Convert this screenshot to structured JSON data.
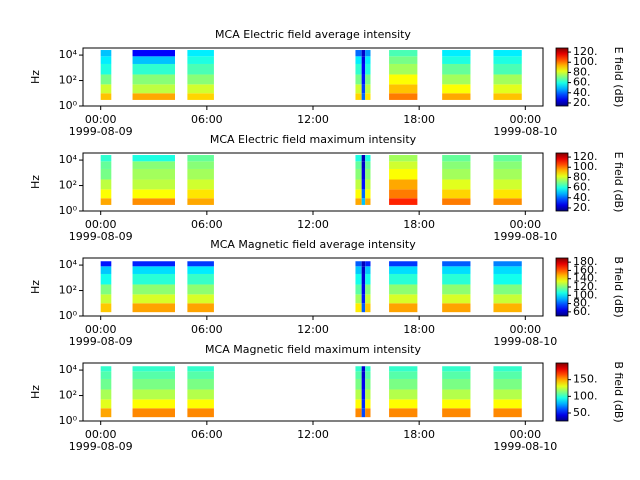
{
  "chart_data": [
    {
      "type": "spectrogram",
      "title": "MCA  Electric field average intensity",
      "ylabel": "Hz",
      "colorbar_label": "E field (dB)",
      "colormap": "jet",
      "log_y": true,
      "xlim": [
        -1,
        25
      ],
      "xticks": [
        {
          "value": 0,
          "label": "00:00"
        },
        {
          "value": 6,
          "label": "06:00"
        },
        {
          "value": 12,
          "label": "12:00"
        },
        {
          "value": 18,
          "label": "18:00"
        },
        {
          "value": 24,
          "label": "00:00"
        }
      ],
      "date_labels": [
        {
          "value": 0,
          "label": "1999-08-09"
        },
        {
          "value": 24,
          "label": "1999-08-10"
        }
      ],
      "ylim": [
        1,
        36000
      ],
      "yticks": [
        {
          "value": 1,
          "label": "10⁰"
        },
        {
          "value": 100,
          "label": "10²"
        },
        {
          "value": 10000,
          "label": "10⁴"
        }
      ],
      "clim": [
        14,
        128
      ],
      "cticks": [
        {
          "value": 20,
          "label": "20."
        },
        {
          "value": 40,
          "label": "40."
        },
        {
          "value": 60,
          "label": "60."
        },
        {
          "value": 80,
          "label": "80."
        },
        {
          "value": 100,
          "label": "100."
        },
        {
          "value": 120,
          "label": "120."
        }
      ],
      "freq_edges": [
        3,
        10,
        50,
        300,
        2000,
        8000,
        25000
      ],
      "segments": [
        {
          "start": 0,
          "end": 0.6,
          "values": [
            92,
            80,
            70,
            60,
            55,
            50
          ]
        },
        {
          "start": 1.8,
          "end": 4.2,
          "values": [
            95,
            78,
            72,
            62,
            50,
            28
          ]
        },
        {
          "start": 4.9,
          "end": 6.4,
          "values": [
            90,
            80,
            72,
            65,
            60,
            55
          ]
        },
        {
          "start": 14.4,
          "end": 14.75,
          "values": [
            90,
            80,
            70,
            62,
            55,
            40
          ]
        },
        {
          "start": 14.75,
          "end": 14.95,
          "values": [
            40,
            35,
            30,
            28,
            25,
            22
          ]
        },
        {
          "start": 14.95,
          "end": 15.25,
          "values": [
            88,
            78,
            70,
            60,
            55,
            45
          ]
        },
        {
          "start": 16.3,
          "end": 17.9,
          "values": [
            100,
            92,
            85,
            75,
            70,
            65
          ]
        },
        {
          "start": 19.3,
          "end": 20.9,
          "values": [
            95,
            85,
            75,
            68,
            60,
            55
          ]
        },
        {
          "start": 22.2,
          "end": 23.8,
          "values": [
            92,
            82,
            75,
            65,
            60,
            55
          ]
        }
      ]
    },
    {
      "type": "spectrogram",
      "title": "MCA  Electric field maximum intensity",
      "ylabel": "Hz",
      "colorbar_label": "E field (dB)",
      "colormap": "jet",
      "log_y": true,
      "xlim": [
        -1,
        25
      ],
      "xticks": [
        {
          "value": 0,
          "label": "00:00"
        },
        {
          "value": 6,
          "label": "06:00"
        },
        {
          "value": 12,
          "label": "12:00"
        },
        {
          "value": 18,
          "label": "18:00"
        },
        {
          "value": 24,
          "label": "00:00"
        }
      ],
      "date_labels": [
        {
          "value": 0,
          "label": "1999-08-09"
        },
        {
          "value": 24,
          "label": "1999-08-10"
        }
      ],
      "ylim": [
        1,
        36000
      ],
      "yticks": [
        {
          "value": 1,
          "label": "10⁰"
        },
        {
          "value": 100,
          "label": "10²"
        },
        {
          "value": 10000,
          "label": "10⁴"
        }
      ],
      "clim": [
        14,
        128
      ],
      "cticks": [
        {
          "value": 20,
          "label": "20."
        },
        {
          "value": 40,
          "label": "40."
        },
        {
          "value": 60,
          "label": "60."
        },
        {
          "value": 80,
          "label": "80."
        },
        {
          "value": 100,
          "label": "100."
        },
        {
          "value": 120,
          "label": "120."
        }
      ],
      "freq_edges": [
        3,
        10,
        50,
        300,
        2000,
        8000,
        25000
      ],
      "segments": [
        {
          "start": 0,
          "end": 0.6,
          "values": [
            95,
            85,
            78,
            70,
            68,
            62
          ]
        },
        {
          "start": 1.8,
          "end": 4.2,
          "values": [
            98,
            85,
            78,
            75,
            72,
            60
          ]
        },
        {
          "start": 4.9,
          "end": 6.4,
          "values": [
            95,
            88,
            80,
            75,
            72,
            68
          ]
        },
        {
          "start": 14.4,
          "end": 14.75,
          "values": [
            95,
            85,
            78,
            72,
            68,
            60
          ]
        },
        {
          "start": 14.75,
          "end": 14.95,
          "values": [
            50,
            40,
            30,
            25,
            22,
            20
          ]
        },
        {
          "start": 14.95,
          "end": 15.25,
          "values": [
            95,
            85,
            78,
            72,
            68,
            60
          ]
        },
        {
          "start": 16.3,
          "end": 17.9,
          "values": [
            110,
            100,
            95,
            85,
            80,
            75
          ]
        },
        {
          "start": 19.3,
          "end": 20.9,
          "values": [
            100,
            90,
            82,
            75,
            72,
            68
          ]
        },
        {
          "start": 22.2,
          "end": 23.8,
          "values": [
            98,
            88,
            80,
            75,
            72,
            68
          ]
        }
      ]
    },
    {
      "type": "spectrogram",
      "title": "MCA  Magnetic field average intensity",
      "ylabel": "Hz",
      "colorbar_label": "B field (dB)",
      "colormap": "jet",
      "log_y": true,
      "xlim": [
        -1,
        25
      ],
      "xticks": [
        {
          "value": 0,
          "label": "00:00"
        },
        {
          "value": 6,
          "label": "06:00"
        },
        {
          "value": 12,
          "label": "12:00"
        },
        {
          "value": 18,
          "label": "18:00"
        },
        {
          "value": 24,
          "label": "00:00"
        }
      ],
      "date_labels": [
        {
          "value": 0,
          "label": "1999-08-09"
        },
        {
          "value": 24,
          "label": "1999-08-10"
        }
      ],
      "ylim": [
        1,
        36000
      ],
      "yticks": [
        {
          "value": 1,
          "label": "10⁰"
        },
        {
          "value": 100,
          "label": "10²"
        },
        {
          "value": 10000,
          "label": "10⁴"
        }
      ],
      "clim": [
        50,
        190
      ],
      "cticks": [
        {
          "value": 60,
          "label": "60."
        },
        {
          "value": 80,
          "label": "80."
        },
        {
          "value": 100,
          "label": "100."
        },
        {
          "value": 120,
          "label": "120."
        },
        {
          "value": 140,
          "label": "140."
        },
        {
          "value": 160,
          "label": "160."
        },
        {
          "value": 180,
          "label": "180."
        }
      ],
      "freq_edges": [
        2,
        10,
        50,
        300,
        2000,
        8000,
        20000
      ],
      "segments": [
        {
          "start": 0,
          "end": 0.6,
          "values": [
            145,
            130,
            120,
            105,
            95,
            70
          ]
        },
        {
          "start": 1.8,
          "end": 4.2,
          "values": [
            150,
            132,
            122,
            108,
            98,
            72
          ]
        },
        {
          "start": 4.9,
          "end": 6.4,
          "values": [
            150,
            132,
            122,
            110,
            100,
            75
          ]
        },
        {
          "start": 14.4,
          "end": 14.75,
          "values": [
            140,
            125,
            115,
            105,
            95,
            80
          ]
        },
        {
          "start": 14.75,
          "end": 14.95,
          "values": [
            80,
            70,
            65,
            62,
            60,
            58
          ]
        },
        {
          "start": 14.95,
          "end": 15.25,
          "values": [
            145,
            130,
            120,
            105,
            95,
            72
          ]
        },
        {
          "start": 16.3,
          "end": 17.9,
          "values": [
            150,
            132,
            122,
            108,
            98,
            75
          ]
        },
        {
          "start": 19.3,
          "end": 20.9,
          "values": [
            150,
            132,
            122,
            108,
            98,
            80
          ]
        },
        {
          "start": 22.2,
          "end": 23.8,
          "values": [
            148,
            130,
            120,
            105,
            98,
            85
          ]
        }
      ]
    },
    {
      "type": "spectrogram",
      "title": "MCA  Magnetic field maximum intensity",
      "ylabel": "Hz",
      "colorbar_label": "B field (dB)",
      "colormap": "jet",
      "log_y": true,
      "xlim": [
        -1,
        25
      ],
      "xticks": [
        {
          "value": 0,
          "label": "00:00"
        },
        {
          "value": 6,
          "label": "06:00"
        },
        {
          "value": 12,
          "label": "12:00"
        },
        {
          "value": 18,
          "label": "18:00"
        },
        {
          "value": 24,
          "label": "00:00"
        }
      ],
      "date_labels": [
        {
          "value": 0,
          "label": "1999-08-09"
        },
        {
          "value": 24,
          "label": "1999-08-10"
        }
      ],
      "ylim": [
        1,
        36000
      ],
      "yticks": [
        {
          "value": 1,
          "label": "10⁰"
        },
        {
          "value": 100,
          "label": "10²"
        },
        {
          "value": 10000,
          "label": "10⁴"
        }
      ],
      "clim": [
        26,
        200
      ],
      "cticks": [
        {
          "value": 50,
          "label": "50."
        },
        {
          "value": 100,
          "label": "100."
        },
        {
          "value": 150,
          "label": "150."
        }
      ],
      "freq_edges": [
        2,
        10,
        50,
        300,
        2000,
        8000,
        20000
      ],
      "segments": [
        {
          "start": 0,
          "end": 0.6,
          "values": [
            150,
            130,
            120,
            110,
            105,
            100
          ]
        },
        {
          "start": 1.8,
          "end": 4.2,
          "values": [
            155,
            135,
            122,
            112,
            106,
            100
          ]
        },
        {
          "start": 4.9,
          "end": 6.4,
          "values": [
            155,
            135,
            122,
            112,
            106,
            100
          ]
        },
        {
          "start": 14.4,
          "end": 14.75,
          "values": [
            155,
            135,
            122,
            112,
            106,
            100
          ]
        },
        {
          "start": 14.75,
          "end": 14.95,
          "values": [
            60,
            55,
            50,
            45,
            40,
            40
          ]
        },
        {
          "start": 14.95,
          "end": 15.25,
          "values": [
            155,
            135,
            122,
            112,
            106,
            100
          ]
        },
        {
          "start": 16.3,
          "end": 17.9,
          "values": [
            155,
            135,
            122,
            112,
            106,
            100
          ]
        },
        {
          "start": 19.3,
          "end": 20.9,
          "values": [
            155,
            135,
            122,
            112,
            106,
            100
          ]
        },
        {
          "start": 22.2,
          "end": 23.8,
          "values": [
            155,
            135,
            122,
            112,
            106,
            100
          ]
        }
      ]
    }
  ]
}
